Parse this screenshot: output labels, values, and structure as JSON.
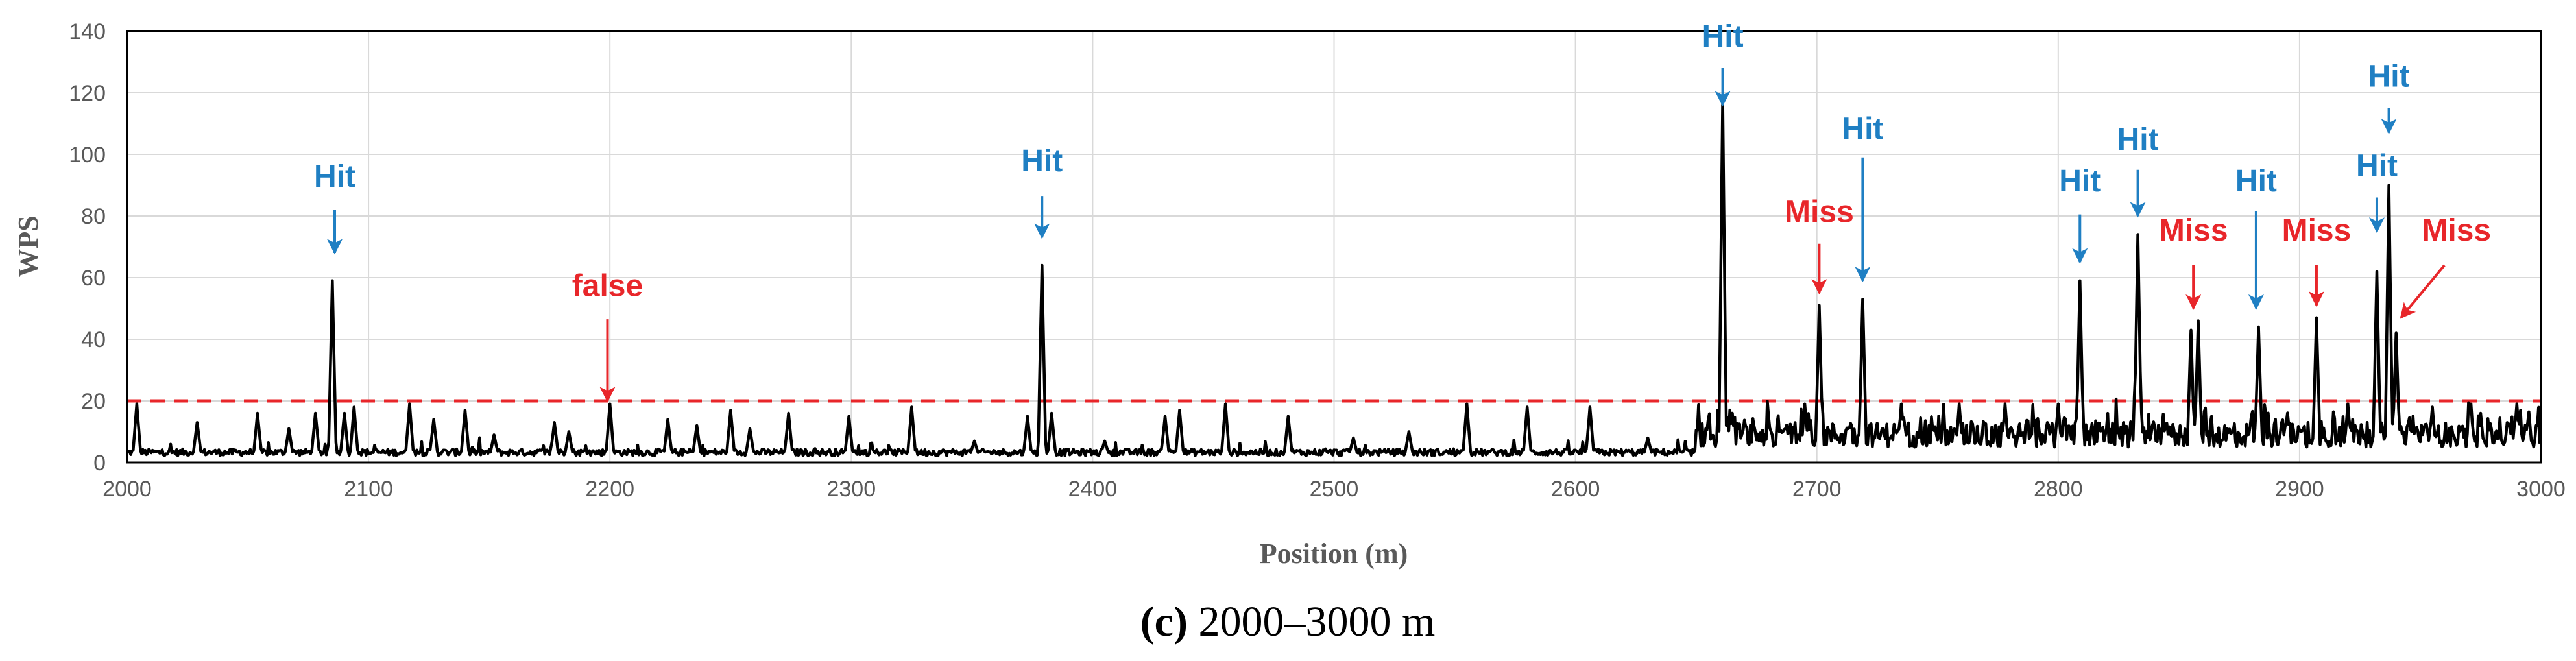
{
  "chart_data": {
    "type": "line",
    "title": "",
    "xlabel": "Position (m)",
    "ylabel": "WPS",
    "xlim": [
      2000,
      3000
    ],
    "ylim": [
      0,
      140
    ],
    "xticks": [
      2000,
      2100,
      2200,
      2300,
      2400,
      2500,
      2600,
      2700,
      2800,
      2900,
      3000
    ],
    "yticks": [
      0,
      20,
      40,
      60,
      80,
      100,
      120,
      140
    ],
    "grid": true,
    "threshold": {
      "value": 20,
      "color": "#e8262a",
      "style": "dashed"
    },
    "series": [
      {
        "name": "WPS",
        "color": "#000000",
        "baseline": 3,
        "noise_low": [
          2000,
          2650
        ],
        "noise_high": [
          2650,
          3000
        ],
        "peaks": [
          [
            2004,
            19
          ],
          [
            2029,
            13
          ],
          [
            2054,
            16
          ],
          [
            2067,
            11
          ],
          [
            2078,
            16
          ],
          [
            2085,
            59
          ],
          [
            2090,
            16
          ],
          [
            2094,
            18
          ],
          [
            2117,
            19
          ],
          [
            2127,
            14
          ],
          [
            2140,
            17
          ],
          [
            2152,
            9
          ],
          [
            2177,
            13
          ],
          [
            2183,
            10
          ],
          [
            2200,
            19
          ],
          [
            2224,
            14
          ],
          [
            2236,
            12
          ],
          [
            2250,
            17
          ],
          [
            2258,
            11
          ],
          [
            2274,
            16
          ],
          [
            2299,
            15
          ],
          [
            2325,
            18
          ],
          [
            2351,
            7
          ],
          [
            2373,
            15
          ],
          [
            2379,
            64
          ],
          [
            2383,
            16
          ],
          [
            2405,
            7
          ],
          [
            2430,
            15
          ],
          [
            2436,
            17
          ],
          [
            2455,
            19
          ],
          [
            2481,
            15
          ],
          [
            2508,
            8
          ],
          [
            2531,
            10
          ],
          [
            2555,
            19
          ],
          [
            2580,
            18
          ],
          [
            2606,
            18
          ],
          [
            2630,
            8
          ],
          [
            2655,
            14
          ],
          [
            2661,
            118
          ],
          [
            2665,
            16
          ],
          [
            2680,
            15
          ],
          [
            2695,
            19
          ],
          [
            2701,
            51
          ],
          [
            2719,
            53
          ],
          [
            2735,
            19
          ],
          [
            2759,
            19
          ],
          [
            2778,
            19
          ],
          [
            2800,
            19
          ],
          [
            2809,
            59
          ],
          [
            2833,
            74
          ],
          [
            2855,
            43
          ],
          [
            2858,
            46
          ],
          [
            2883,
            44
          ],
          [
            2907,
            47
          ],
          [
            2920,
            19
          ],
          [
            2932,
            62
          ],
          [
            2937,
            90
          ],
          [
            2940,
            42
          ],
          [
            2955,
            18
          ],
          [
            2975,
            16
          ],
          [
            2990,
            19
          ]
        ]
      }
    ],
    "annotations": [
      {
        "label": "Hit",
        "color": "#1f7fc3",
        "text_x": 2086,
        "text_y": 89.5,
        "arrow_from": [
          2086,
          82
        ],
        "arrow_to": [
          2086,
          68
        ]
      },
      {
        "label": "false",
        "color": "#e8262a",
        "text_x": 2199,
        "text_y": 54,
        "arrow_from": [
          2199,
          46.5
        ],
        "arrow_to": [
          2199,
          20
        ]
      },
      {
        "label": "Hit",
        "color": "#1f7fc3",
        "text_x": 2379,
        "text_y": 94.5,
        "arrow_from": [
          2379,
          86.5
        ],
        "arrow_to": [
          2379,
          73
        ]
      },
      {
        "label": "Hit",
        "color": "#1f7fc3",
        "text_x": 2661,
        "text_y": 135,
        "arrow_from": [
          2661,
          128
        ],
        "arrow_to": [
          2661,
          116
        ]
      },
      {
        "label": "Miss",
        "color": "#e8262a",
        "text_x": 2701,
        "text_y": 78,
        "arrow_from": [
          2701,
          71
        ],
        "arrow_to": [
          2701,
          55
        ]
      },
      {
        "label": "Hit",
        "color": "#1f7fc3",
        "text_x": 2719,
        "text_y": 105,
        "arrow_from": [
          2719,
          99
        ],
        "arrow_to": [
          2719,
          59
        ]
      },
      {
        "label": "Hit",
        "color": "#1f7fc3",
        "text_x": 2809,
        "text_y": 88,
        "arrow_from": [
          2809,
          80.5
        ],
        "arrow_to": [
          2809,
          65
        ]
      },
      {
        "label": "Hit",
        "color": "#1f7fc3",
        "text_x": 2833,
        "text_y": 101.5,
        "arrow_from": [
          2833,
          95
        ],
        "arrow_to": [
          2833,
          80
        ]
      },
      {
        "label": "Miss",
        "color": "#e8262a",
        "text_x": 2856,
        "text_y": 72,
        "arrow_from": [
          2856,
          64
        ],
        "arrow_to": [
          2856,
          50
        ]
      },
      {
        "label": "Hit",
        "color": "#1f7fc3",
        "text_x": 2882,
        "text_y": 88,
        "arrow_from": [
          2882,
          81.5
        ],
        "arrow_to": [
          2882,
          50
        ]
      },
      {
        "label": "Miss",
        "color": "#e8262a",
        "text_x": 2907,
        "text_y": 72,
        "arrow_from": [
          2907,
          64
        ],
        "arrow_to": [
          2907,
          51
        ]
      },
      {
        "label": "Hit",
        "color": "#1f7fc3",
        "text_x": 2932,
        "text_y": 93,
        "arrow_from": [
          2932,
          86
        ],
        "arrow_to": [
          2932,
          75
        ]
      },
      {
        "label": "Hit",
        "color": "#1f7fc3",
        "text_x": 2937,
        "text_y": 122,
        "arrow_from": [
          2937,
          115
        ],
        "arrow_to": [
          2937,
          107
        ]
      },
      {
        "label": "Miss",
        "color": "#e8262a",
        "text_x": 2965,
        "text_y": 72,
        "arrow_from": [
          2960,
          64
        ],
        "arrow_to": [
          2942,
          47
        ]
      }
    ]
  },
  "caption": {
    "label": "(c)",
    "text": " 2000–3000 m"
  }
}
